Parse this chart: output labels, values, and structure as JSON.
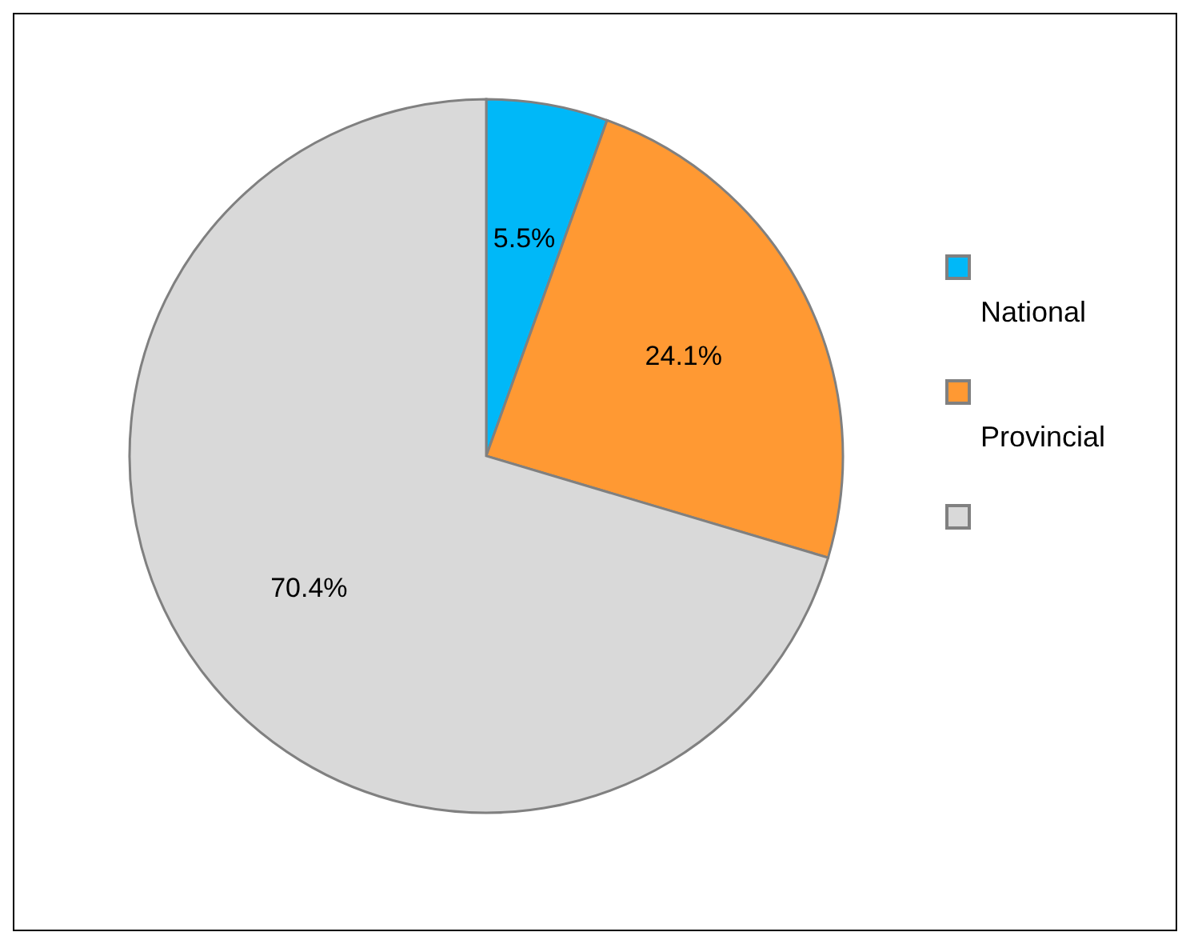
{
  "chart_data": {
    "type": "pie",
    "categories": [
      "National",
      "Provincial",
      null
    ],
    "values": [
      5.5,
      24.1,
      70.4
    ],
    "colors": [
      "#00b8f8",
      "#ff9933",
      "#d9d9d9"
    ],
    "value_labels": [
      "5.5%",
      "24.1%",
      "70.4%"
    ],
    "legend": "right"
  }
}
